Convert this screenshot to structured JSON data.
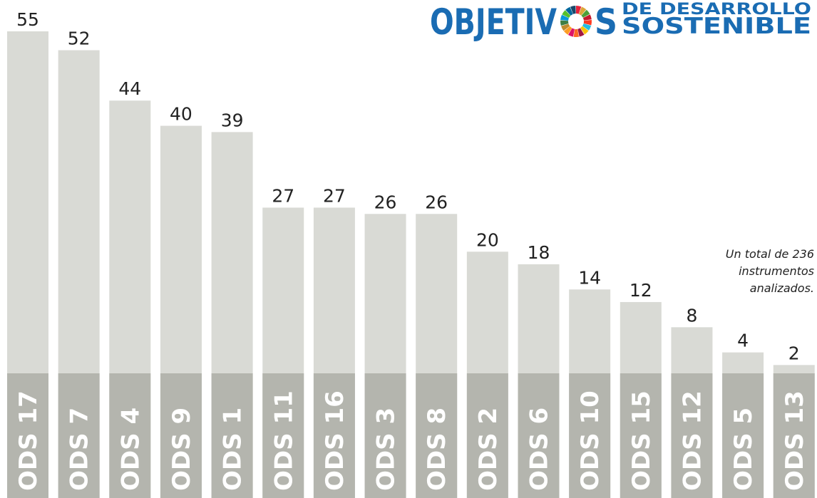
{
  "chart_data": {
    "type": "bar",
    "logo": {
      "word_left": "OBJETIV",
      "word_right": "S",
      "line1": "DE DESARROLLO",
      "line2": "SOSTENIBLE"
    },
    "annotation": [
      "Un total de 236",
      "instrumentos",
      "analizados."
    ],
    "categories": [
      "ODS 17",
      "ODS 7",
      "ODS 4",
      "ODS 9",
      "ODS 1",
      "ODS 11",
      "ODS 16",
      "ODS 3",
      "ODS 8",
      "ODS 2",
      "ODS 6",
      "ODS 10",
      "ODS 15",
      "ODS 12",
      "ODS 5",
      "ODS 13"
    ],
    "values": [
      55,
      52,
      44,
      40,
      39,
      27,
      27,
      26,
      26,
      20,
      18,
      14,
      12,
      8,
      4,
      2
    ],
    "color": "#d9dad5",
    "label_color": "#b4b5ae",
    "ylim": [
      0,
      55
    ]
  }
}
